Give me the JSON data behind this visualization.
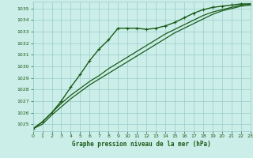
{
  "title": "Graphe pression niveau de la mer (hPa)",
  "bg_color": "#cceee8",
  "grid_color": "#99cccc",
  "line_color": "#1a5c1a",
  "xlim": [
    0,
    23
  ],
  "ylim": [
    1024.4,
    1035.6
  ],
  "xticks": [
    0,
    1,
    2,
    3,
    4,
    5,
    6,
    7,
    8,
    9,
    10,
    11,
    12,
    13,
    14,
    15,
    16,
    17,
    18,
    19,
    20,
    21,
    22,
    23
  ],
  "yticks": [
    1025,
    1026,
    1027,
    1028,
    1029,
    1030,
    1031,
    1032,
    1033,
    1034,
    1035
  ],
  "series": [
    {
      "y": [
        1024.6,
        1025.2,
        1026.0,
        1027.0,
        1028.2,
        1029.3,
        1030.5,
        1031.5,
        1032.3,
        1033.3,
        1033.3,
        1033.3,
        1033.2,
        1033.3,
        1033.5,
        1033.8,
        1034.2,
        1034.6,
        1034.9,
        1035.1,
        1035.2,
        1035.3,
        1035.4,
        1035.4
      ],
      "marker": true,
      "lw": 1.0
    },
    {
      "y": [
        1024.6,
        1025.2,
        1026.0,
        1026.8,
        1027.5,
        1028.1,
        1028.7,
        1029.2,
        1029.8,
        1030.3,
        1030.8,
        1031.3,
        1031.8,
        1032.3,
        1032.8,
        1033.2,
        1033.6,
        1034.0,
        1034.4,
        1034.7,
        1034.9,
        1035.1,
        1035.3,
        1035.4
      ],
      "marker": false,
      "lw": 0.9
    },
    {
      "y": [
        1024.6,
        1025.0,
        1025.8,
        1026.5,
        1027.2,
        1027.8,
        1028.4,
        1028.9,
        1029.4,
        1029.9,
        1030.4,
        1030.9,
        1031.4,
        1031.9,
        1032.4,
        1032.9,
        1033.3,
        1033.7,
        1034.1,
        1034.5,
        1034.8,
        1035.0,
        1035.2,
        1035.3
      ],
      "marker": false,
      "lw": 0.9
    }
  ]
}
